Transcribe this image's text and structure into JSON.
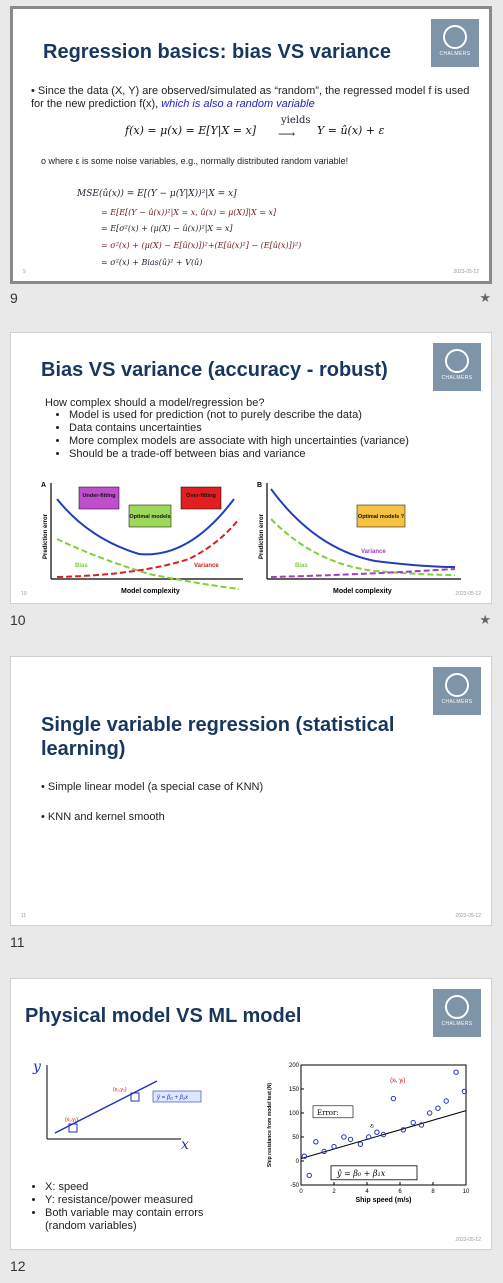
{
  "slides": [
    {
      "number": "9",
      "title": "Regression basics: bias VS variance",
      "bullet_prefix": "Since the data (X, Y) are observed/simulated as “random”, the regressed model f is used for the new prediction f(x), ",
      "bullet_blue": "which is also a random variable",
      "equation": "f(x) = μ(x) = E[Y|X = x]",
      "equation_arrow_label": "yields",
      "equation_rhs": "Y = û(x) + ε",
      "sub_bullet": "where ε is some noise variables, e.g., normally distributed random variable!",
      "mse_lines": [
        "MSE(û(x)) =  E[(Y − μ(Y|X))²|X = x]",
        "= E[E[(Y − û(x))²|X = x, û(x) = μ(X)]|X = x]",
        "= E[σ²(x) + (μ(X) − û(x))²|X = x]",
        "= σ²(x) + (μ(X) − E[û(x)])²+(E[û(x)²] − (E[û(x)])²)",
        "= σ²(x) + Bias(û)² + V(û)"
      ],
      "footer_num": "9",
      "footer_date": "2023-05-12"
    },
    {
      "number": "10",
      "title": "Bias VS variance (accuracy - robust)",
      "intro": "How complex should a model/regression be?",
      "bullets": [
        "Model is used for prediction (not to purely describe the data)",
        "Data contains uncertainties",
        "More complex models are associate with high uncertainties (variance)",
        "Should be a trade-off between bias and variance"
      ],
      "chart_a": {
        "panel": "A",
        "ylabel": "Prediction error",
        "xlabel": "Model complexity",
        "box_under": "Under-fitting",
        "box_optimal": "Optimal models",
        "box_over": "Over-fitting",
        "bias_label": "Bias",
        "variance_label": "Variance"
      },
      "chart_b": {
        "panel": "B",
        "ylabel": "Prediction error",
        "xlabel": "Model complexity",
        "box_optimal": "Optimal models ?",
        "bias_label": "Bias",
        "variance_label": "Variance"
      },
      "footer_num": "10",
      "footer_date": "2023-05-12"
    },
    {
      "number": "11",
      "title": "Single variable regression (statistical learning)",
      "bullets": [
        "Simple linear model (a special case of KNN)",
        "KNN and kernel smooth"
      ],
      "footer_num": "11",
      "footer_date": "2023-05-12"
    },
    {
      "number": "12",
      "title": "Physical model VS ML model",
      "left_fig": {
        "y_label": "y",
        "x_label": "x",
        "point1": "(x₁,y₁)",
        "point2": "(x₂,y₂)",
        "eq": "ŷ = β₀ + β₁x"
      },
      "bullets": [
        "X: speed",
        "Y: resistance/power measured",
        "Both variable may contain errors (random variables)"
      ],
      "footer_date": "2023-05-12"
    }
  ],
  "logo_text": "CHALMERS",
  "star_icon": "★",
  "chart_data": {
    "type": "scatter",
    "xlabel": "Ship speed (m/s)",
    "ylabel": "Ship resistance from model test (N)",
    "xlim": [
      0,
      10
    ],
    "ylim": [
      -50,
      200
    ],
    "x_ticks": [
      0,
      2,
      4,
      6,
      8,
      10
    ],
    "y_ticks": [
      -50,
      0,
      50,
      100,
      150,
      200
    ],
    "points": [
      {
        "x": 0.2,
        "y": 10
      },
      {
        "x": 0.5,
        "y": -30
      },
      {
        "x": 0.9,
        "y": 40
      },
      {
        "x": 1.4,
        "y": 20
      },
      {
        "x": 2.0,
        "y": 30
      },
      {
        "x": 2.6,
        "y": 50
      },
      {
        "x": 3.0,
        "y": 45
      },
      {
        "x": 3.6,
        "y": 35
      },
      {
        "x": 4.1,
        "y": 50
      },
      {
        "x": 4.6,
        "y": 60
      },
      {
        "x": 5.0,
        "y": 55
      },
      {
        "x": 5.6,
        "y": 130
      },
      {
        "x": 6.2,
        "y": 65
      },
      {
        "x": 6.8,
        "y": 80
      },
      {
        "x": 7.3,
        "y": 75
      },
      {
        "x": 7.8,
        "y": 100
      },
      {
        "x": 8.3,
        "y": 110
      },
      {
        "x": 8.8,
        "y": 125
      },
      {
        "x": 9.4,
        "y": 185
      },
      {
        "x": 9.9,
        "y": 145
      }
    ],
    "fit_line": {
      "intercept": 5,
      "slope": 10
    },
    "annotation_point": "(xᵢ, yᵢ)",
    "error_label": "Error:",
    "error_symbol": "εᵢ",
    "fit_eq": "ŷ = β₀ + β₁x"
  }
}
